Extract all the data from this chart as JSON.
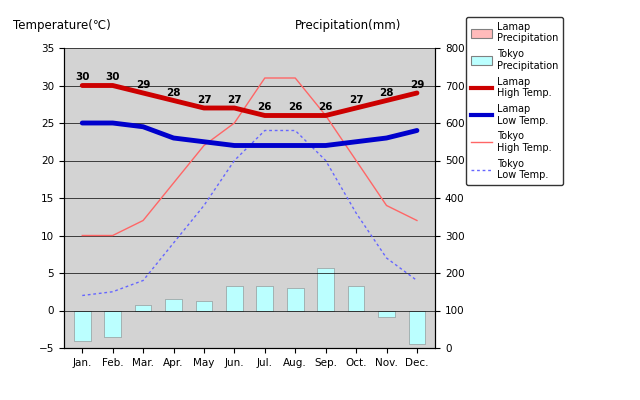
{
  "months": [
    "Jan.",
    "Feb.",
    "Mar.",
    "Apr.",
    "May",
    "Jun.",
    "Jul.",
    "Aug.",
    "Sep.",
    "Oct.",
    "Nov.",
    "Dec."
  ],
  "lamap_high_temp": [
    30,
    30,
    29,
    28,
    27,
    27,
    26,
    26,
    26,
    27,
    28,
    29
  ],
  "lamap_low_temp": [
    25,
    25,
    24.5,
    23,
    22.5,
    22,
    22,
    22,
    22,
    22.5,
    23,
    24
  ],
  "tokyo_high_temp": [
    10,
    10,
    12,
    17,
    22,
    25,
    31,
    31,
    26,
    20,
    14,
    12
  ],
  "tokyo_low_temp": [
    2,
    2.5,
    4,
    9,
    14,
    20,
    24,
    24,
    20,
    13,
    7,
    4
  ],
  "tokyo_precip_temp_scale": [
    -4,
    -3.5,
    0.8,
    1.5,
    1.3,
    3.3,
    3.3,
    3.0,
    5.7,
    3.3,
    -0.8,
    -4.5
  ],
  "temp_ylim": [
    -5,
    35
  ],
  "precip_ylim": [
    0,
    800
  ],
  "bg_color": "#d3d3d3",
  "lamap_high_color": "#cc0000",
  "lamap_low_color": "#0000cc",
  "tokyo_high_color": "#ff6666",
  "tokyo_low_color": "#6666ff",
  "lamap_precip_color": "#ffbbbb",
  "tokyo_precip_color": "#bbffff",
  "title_left": "Temperature(℃)",
  "title_right": "Precipitation(mm)",
  "yticks_left": [
    -5,
    0,
    5,
    10,
    15,
    20,
    25,
    30,
    35
  ],
  "yticks_right": [
    0,
    100,
    200,
    300,
    400,
    500,
    600,
    700,
    800
  ]
}
